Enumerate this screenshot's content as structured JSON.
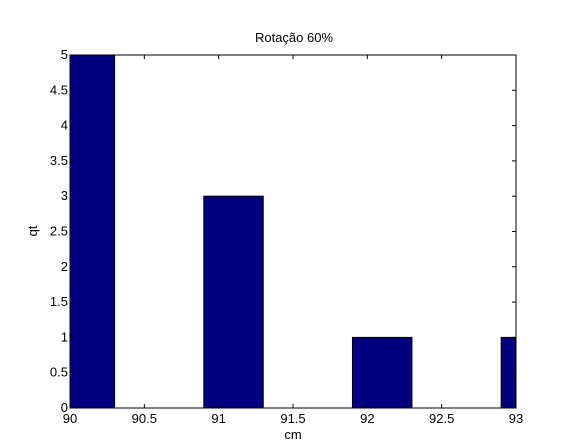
{
  "chart_data": {
    "type": "bar",
    "title": "Rotação 60%",
    "xlabel": "cm",
    "ylabel": "qt",
    "xlim": [
      90,
      93
    ],
    "ylim": [
      0,
      5
    ],
    "x_ticks": [
      "90",
      "90.5",
      "91",
      "91.5",
      "92",
      "92.5",
      "93"
    ],
    "y_ticks": [
      "0",
      "0.5",
      "1",
      "1.5",
      "2",
      "2.5",
      "3",
      "3.5",
      "4",
      "4.5",
      "5"
    ],
    "bars": [
      {
        "x0": 89.9,
        "x1": 90.3,
        "value": 5
      },
      {
        "x0": 90.9,
        "x1": 91.3,
        "value": 3
      },
      {
        "x0": 91.9,
        "x1": 92.3,
        "value": 1
      },
      {
        "x0": 92.9,
        "x1": 93.0,
        "value": 1
      }
    ],
    "grid": false,
    "bar_color": "#000080"
  }
}
